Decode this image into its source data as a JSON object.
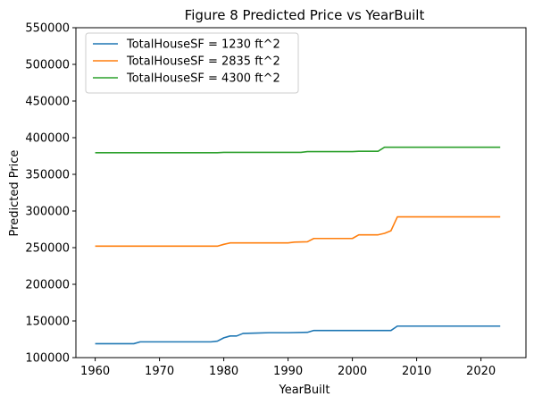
{
  "chart_data": {
    "type": "line",
    "title": "Figure 8 Predicted Price vs YearBuilt",
    "xlabel": "YearBuilt",
    "ylabel": "Predicted Price",
    "xlim": [
      1957,
      2027
    ],
    "ylim": [
      100000,
      550000
    ],
    "xticks": [
      1960,
      1970,
      1980,
      1990,
      2000,
      2010,
      2020
    ],
    "yticks": [
      100000,
      150000,
      200000,
      250000,
      300000,
      350000,
      400000,
      450000,
      500000,
      550000
    ],
    "grid": false,
    "legend_position": "top-left",
    "series": [
      {
        "name": "TotalHouseSF = 1230 ft^2",
        "color": "#1f77b4",
        "x": [
          1960,
          1966,
          1967,
          1978,
          1979,
          1980,
          1981,
          1982,
          1983,
          1985,
          1987,
          1990,
          1993,
          1994,
          2000,
          2006,
          2007,
          2023
        ],
        "y": [
          119000,
          119000,
          121500,
          121500,
          122500,
          127000,
          129500,
          129500,
          133000,
          133500,
          134000,
          134000,
          134500,
          137000,
          137000,
          137000,
          143000,
          143000
        ]
      },
      {
        "name": "TotalHouseSF = 2835 ft^2",
        "color": "#ff7f0e",
        "x": [
          1960,
          1979,
          1980,
          1981,
          1990,
          1991,
          1993,
          1994,
          2000,
          2001,
          2004,
          2005,
          2006,
          2007,
          2023
        ],
        "y": [
          252000,
          252000,
          254500,
          256500,
          256500,
          257500,
          258000,
          262500,
          262500,
          267500,
          267500,
          269500,
          273000,
          292000,
          292000
        ]
      },
      {
        "name": "TotalHouseSF = 4300 ft^2",
        "color": "#2ca02c",
        "x": [
          1960,
          1979,
          1980,
          1992,
          1993,
          2000,
          2001,
          2004,
          2005,
          2023
        ],
        "y": [
          379500,
          379500,
          380000,
          380000,
          381000,
          381000,
          381500,
          381500,
          387000,
          387000
        ]
      }
    ]
  }
}
